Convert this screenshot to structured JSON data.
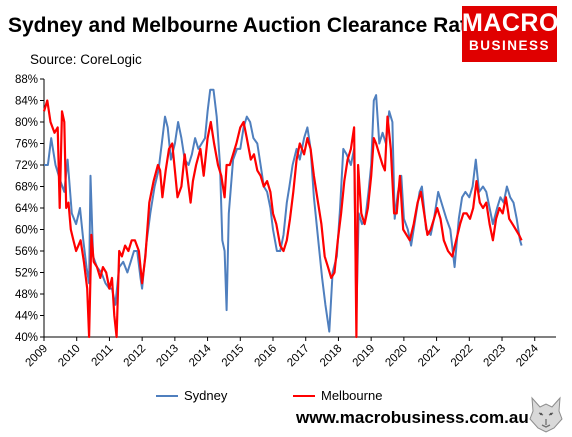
{
  "header": {
    "title": "Sydney and Melbourne Auction Clearance Rates",
    "source": "Source: CoreLogic"
  },
  "logo": {
    "line1": "MACRO",
    "line2": "BUSINESS"
  },
  "footer": {
    "url": "www.macrobusiness.com.au"
  },
  "colors": {
    "sydney": "#4f7fbe",
    "melbourne": "#ff0000",
    "logo_bg": "#e00000"
  },
  "chart_data": {
    "type": "line",
    "title": "Sydney and Melbourne Auction Clearance Rates",
    "ylim": [
      40,
      88
    ],
    "xlim": [
      2009,
      2024.65
    ],
    "y_ticks": [
      40,
      44,
      48,
      52,
      56,
      60,
      64,
      68,
      72,
      76,
      80,
      84,
      88
    ],
    "y_tick_labels": [
      "40%",
      "44%",
      "48%",
      "52%",
      "56%",
      "60%",
      "64%",
      "68%",
      "72%",
      "76%",
      "80%",
      "84%",
      "88%"
    ],
    "x_ticks": [
      2009,
      2010,
      2011,
      2012,
      2013,
      2014,
      2015,
      2016,
      2017,
      2018,
      2019,
      2020,
      2021,
      2022,
      2023,
      2024
    ],
    "x_tick_labels": [
      "2009",
      "2010",
      "2011",
      "2012",
      "2013",
      "2014",
      "2015",
      "2016",
      "2017",
      "2018",
      "2019",
      "2020",
      "2021",
      "2022",
      "2023",
      "2024"
    ],
    "legend_position": "bottom",
    "grid": false,
    "series": [
      {
        "name": "Sydney",
        "points": [
          [
            2009.0,
            72
          ],
          [
            2009.12,
            72
          ],
          [
            2009.22,
            77
          ],
          [
            2009.35,
            72
          ],
          [
            2009.5,
            69
          ],
          [
            2009.62,
            67
          ],
          [
            2009.72,
            73
          ],
          [
            2009.85,
            63
          ],
          [
            2009.98,
            61
          ],
          [
            2010.1,
            64
          ],
          [
            2010.2,
            58
          ],
          [
            2010.3,
            53
          ],
          [
            2010.38,
            50
          ],
          [
            2010.42,
            70
          ],
          [
            2010.5,
            55
          ],
          [
            2010.62,
            53
          ],
          [
            2010.75,
            52
          ],
          [
            2010.88,
            50
          ],
          [
            2011.0,
            49
          ],
          [
            2011.08,
            49
          ],
          [
            2011.18,
            46
          ],
          [
            2011.3,
            53
          ],
          [
            2011.42,
            54
          ],
          [
            2011.55,
            52
          ],
          [
            2011.65,
            54
          ],
          [
            2011.75,
            56
          ],
          [
            2011.85,
            56
          ],
          [
            2011.95,
            51
          ],
          [
            2012.0,
            49
          ],
          [
            2012.12,
            57
          ],
          [
            2012.25,
            63
          ],
          [
            2012.38,
            68
          ],
          [
            2012.5,
            71
          ],
          [
            2012.6,
            76
          ],
          [
            2012.7,
            81
          ],
          [
            2012.78,
            79
          ],
          [
            2012.88,
            73
          ],
          [
            2013.0,
            76
          ],
          [
            2013.1,
            80
          ],
          [
            2013.2,
            77
          ],
          [
            2013.3,
            73
          ],
          [
            2013.42,
            72
          ],
          [
            2013.52,
            74
          ],
          [
            2013.62,
            77
          ],
          [
            2013.72,
            75
          ],
          [
            2013.82,
            76
          ],
          [
            2013.92,
            77
          ],
          [
            2014.0,
            82
          ],
          [
            2014.08,
            86
          ],
          [
            2014.18,
            86
          ],
          [
            2014.28,
            81
          ],
          [
            2014.38,
            72
          ],
          [
            2014.45,
            58
          ],
          [
            2014.52,
            56
          ],
          [
            2014.58,
            45
          ],
          [
            2014.65,
            63
          ],
          [
            2014.78,
            73
          ],
          [
            2014.9,
            75
          ],
          [
            2015.0,
            75
          ],
          [
            2015.1,
            79
          ],
          [
            2015.2,
            81
          ],
          [
            2015.3,
            80
          ],
          [
            2015.4,
            77
          ],
          [
            2015.52,
            76
          ],
          [
            2015.62,
            72
          ],
          [
            2015.72,
            68
          ],
          [
            2015.82,
            67
          ],
          [
            2015.92,
            64
          ],
          [
            2016.0,
            60
          ],
          [
            2016.12,
            56
          ],
          [
            2016.22,
            56
          ],
          [
            2016.32,
            59
          ],
          [
            2016.42,
            65
          ],
          [
            2016.5,
            68
          ],
          [
            2016.6,
            72
          ],
          [
            2016.72,
            75
          ],
          [
            2016.82,
            73
          ],
          [
            2016.95,
            77
          ],
          [
            2017.05,
            79
          ],
          [
            2017.15,
            75
          ],
          [
            2017.25,
            66
          ],
          [
            2017.4,
            57
          ],
          [
            2017.5,
            51
          ],
          [
            2017.6,
            46
          ],
          [
            2017.72,
            41
          ],
          [
            2017.82,
            52
          ],
          [
            2017.95,
            55
          ],
          [
            2018.05,
            64
          ],
          [
            2018.15,
            75
          ],
          [
            2018.25,
            74
          ],
          [
            2018.38,
            72
          ],
          [
            2018.48,
            75
          ],
          [
            2018.55,
            44
          ],
          [
            2018.62,
            63
          ],
          [
            2018.72,
            61
          ],
          [
            2018.82,
            62
          ],
          [
            2018.92,
            67
          ],
          [
            2019.0,
            72
          ],
          [
            2019.08,
            84
          ],
          [
            2019.15,
            85
          ],
          [
            2019.25,
            76
          ],
          [
            2019.35,
            78
          ],
          [
            2019.45,
            76
          ],
          [
            2019.55,
            82
          ],
          [
            2019.65,
            80
          ],
          [
            2019.72,
            62
          ],
          [
            2019.82,
            67
          ],
          [
            2019.92,
            70
          ],
          [
            2020.0,
            62
          ],
          [
            2020.12,
            60
          ],
          [
            2020.22,
            57
          ],
          [
            2020.35,
            62
          ],
          [
            2020.48,
            67
          ],
          [
            2020.55,
            68
          ],
          [
            2020.68,
            60
          ],
          [
            2020.82,
            59
          ],
          [
            2020.92,
            62
          ],
          [
            2021.05,
            67
          ],
          [
            2021.2,
            64
          ],
          [
            2021.3,
            62
          ],
          [
            2021.42,
            60
          ],
          [
            2021.55,
            53
          ],
          [
            2021.68,
            62
          ],
          [
            2021.78,
            66
          ],
          [
            2021.88,
            67
          ],
          [
            2022.0,
            66
          ],
          [
            2022.1,
            68
          ],
          [
            2022.2,
            73
          ],
          [
            2022.3,
            67
          ],
          [
            2022.42,
            68
          ],
          [
            2022.52,
            67
          ],
          [
            2022.62,
            64
          ],
          [
            2022.72,
            61
          ],
          [
            2022.85,
            64
          ],
          [
            2022.95,
            66
          ],
          [
            2023.05,
            65
          ],
          [
            2023.15,
            68
          ],
          [
            2023.25,
            66
          ],
          [
            2023.35,
            65
          ],
          [
            2023.45,
            62
          ],
          [
            2023.55,
            58
          ],
          [
            2023.6,
            57
          ]
        ]
      },
      {
        "name": "Melbourne",
        "points": [
          [
            2009.0,
            82
          ],
          [
            2009.1,
            84
          ],
          [
            2009.2,
            80
          ],
          [
            2009.32,
            78
          ],
          [
            2009.42,
            79
          ],
          [
            2009.48,
            64
          ],
          [
            2009.55,
            82
          ],
          [
            2009.62,
            80
          ],
          [
            2009.68,
            64
          ],
          [
            2009.75,
            65
          ],
          [
            2009.82,
            60
          ],
          [
            2009.9,
            58
          ],
          [
            2009.98,
            56
          ],
          [
            2010.05,
            57
          ],
          [
            2010.12,
            58
          ],
          [
            2010.22,
            54
          ],
          [
            2010.32,
            49
          ],
          [
            2010.38,
            40
          ],
          [
            2010.45,
            59
          ],
          [
            2010.52,
            54
          ],
          [
            2010.62,
            53
          ],
          [
            2010.72,
            51
          ],
          [
            2010.8,
            53
          ],
          [
            2010.9,
            52
          ],
          [
            2011.0,
            49
          ],
          [
            2011.08,
            51
          ],
          [
            2011.15,
            44
          ],
          [
            2011.22,
            40
          ],
          [
            2011.3,
            56
          ],
          [
            2011.38,
            55
          ],
          [
            2011.48,
            57
          ],
          [
            2011.58,
            56
          ],
          [
            2011.68,
            58
          ],
          [
            2011.78,
            58
          ],
          [
            2011.9,
            56
          ],
          [
            2012.0,
            50
          ],
          [
            2012.1,
            55
          ],
          [
            2012.22,
            65
          ],
          [
            2012.35,
            69
          ],
          [
            2012.48,
            72
          ],
          [
            2012.55,
            71
          ],
          [
            2012.62,
            66
          ],
          [
            2012.72,
            71
          ],
          [
            2012.82,
            75
          ],
          [
            2012.92,
            76
          ],
          [
            2013.0,
            71
          ],
          [
            2013.08,
            66
          ],
          [
            2013.2,
            68
          ],
          [
            2013.3,
            74
          ],
          [
            2013.38,
            70
          ],
          [
            2013.48,
            65
          ],
          [
            2013.55,
            69
          ],
          [
            2013.65,
            72
          ],
          [
            2013.78,
            75
          ],
          [
            2013.88,
            70
          ],
          [
            2014.0,
            77
          ],
          [
            2014.1,
            80
          ],
          [
            2014.2,
            76
          ],
          [
            2014.32,
            72
          ],
          [
            2014.42,
            70
          ],
          [
            2014.52,
            66
          ],
          [
            2014.58,
            72
          ],
          [
            2014.68,
            72
          ],
          [
            2014.78,
            74
          ],
          [
            2014.88,
            76
          ],
          [
            2015.0,
            79
          ],
          [
            2015.1,
            80
          ],
          [
            2015.2,
            77
          ],
          [
            2015.32,
            73
          ],
          [
            2015.42,
            74
          ],
          [
            2015.52,
            71
          ],
          [
            2015.62,
            70
          ],
          [
            2015.72,
            68
          ],
          [
            2015.82,
            69
          ],
          [
            2015.92,
            67
          ],
          [
            2016.0,
            63
          ],
          [
            2016.1,
            61
          ],
          [
            2016.22,
            57
          ],
          [
            2016.32,
            56
          ],
          [
            2016.42,
            58
          ],
          [
            2016.52,
            62
          ],
          [
            2016.62,
            67
          ],
          [
            2016.72,
            73
          ],
          [
            2016.82,
            76
          ],
          [
            2016.95,
            74
          ],
          [
            2017.05,
            77
          ],
          [
            2017.15,
            75
          ],
          [
            2017.25,
            70
          ],
          [
            2017.35,
            66
          ],
          [
            2017.48,
            61
          ],
          [
            2017.58,
            55
          ],
          [
            2017.68,
            53
          ],
          [
            2017.78,
            51
          ],
          [
            2017.88,
            52
          ],
          [
            2017.98,
            58
          ],
          [
            2018.08,
            63
          ],
          [
            2018.18,
            69
          ],
          [
            2018.28,
            73
          ],
          [
            2018.38,
            75
          ],
          [
            2018.48,
            79
          ],
          [
            2018.55,
            40
          ],
          [
            2018.6,
            72
          ],
          [
            2018.7,
            63
          ],
          [
            2018.8,
            61
          ],
          [
            2018.9,
            64
          ],
          [
            2019.0,
            70
          ],
          [
            2019.08,
            77
          ],
          [
            2019.15,
            76
          ],
          [
            2019.25,
            74
          ],
          [
            2019.35,
            72
          ],
          [
            2019.42,
            71
          ],
          [
            2019.5,
            81
          ],
          [
            2019.6,
            75
          ],
          [
            2019.7,
            63
          ],
          [
            2019.78,
            63
          ],
          [
            2019.88,
            70
          ],
          [
            2019.98,
            60
          ],
          [
            2020.08,
            59
          ],
          [
            2020.18,
            58
          ],
          [
            2020.3,
            61
          ],
          [
            2020.42,
            65
          ],
          [
            2020.52,
            67
          ],
          [
            2020.62,
            63
          ],
          [
            2020.72,
            59
          ],
          [
            2020.82,
            60
          ],
          [
            2020.92,
            62
          ],
          [
            2021.02,
            64
          ],
          [
            2021.12,
            62
          ],
          [
            2021.22,
            58
          ],
          [
            2021.35,
            56
          ],
          [
            2021.48,
            55
          ],
          [
            2021.6,
            58
          ],
          [
            2021.72,
            61
          ],
          [
            2021.82,
            63
          ],
          [
            2021.92,
            63
          ],
          [
            2022.02,
            62
          ],
          [
            2022.12,
            64
          ],
          [
            2022.22,
            69
          ],
          [
            2022.32,
            65
          ],
          [
            2022.42,
            64
          ],
          [
            2022.52,
            65
          ],
          [
            2022.62,
            61
          ],
          [
            2022.72,
            58
          ],
          [
            2022.82,
            62
          ],
          [
            2022.92,
            64
          ],
          [
            2023.02,
            63
          ],
          [
            2023.12,
            66
          ],
          [
            2023.22,
            62
          ],
          [
            2023.32,
            61
          ],
          [
            2023.42,
            60
          ],
          [
            2023.52,
            59
          ],
          [
            2023.6,
            58
          ]
        ]
      }
    ]
  }
}
